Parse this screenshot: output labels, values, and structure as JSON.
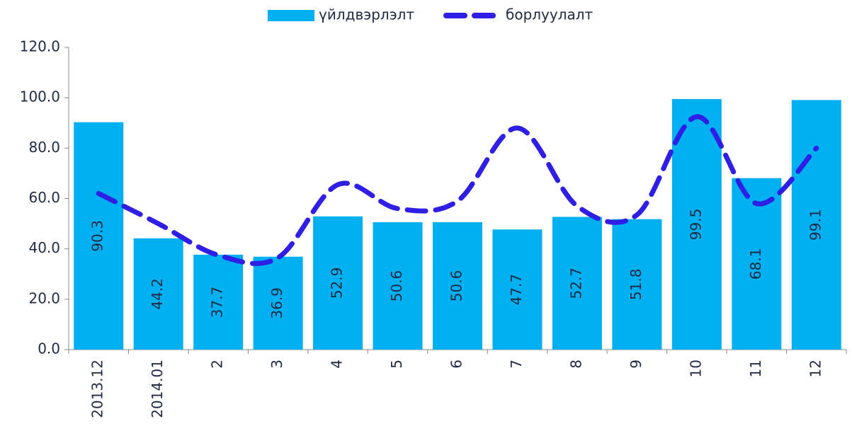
{
  "chart_data": {
    "type": "bar_line",
    "categories": [
      "2013.12",
      "2014.01",
      "2",
      "3",
      "4",
      "5",
      "6",
      "7",
      "8",
      "9",
      "10",
      "11",
      "12"
    ],
    "series": [
      {
        "name": "үйлдвэрлэлт",
        "type": "bar",
        "color": "#00b0f0",
        "values": [
          90.3,
          44.2,
          37.7,
          36.9,
          52.9,
          50.6,
          50.6,
          47.7,
          52.7,
          51.8,
          99.5,
          68.1,
          99.1
        ]
      },
      {
        "name": "борлуулалт",
        "type": "line",
        "color": "#2e1ee6",
        "values": [
          62,
          50,
          37.5,
          36.5,
          65.5,
          56,
          59,
          88,
          57,
          53.5,
          92.5,
          58,
          80
        ]
      }
    ],
    "ylim": [
      0,
      120
    ],
    "yticks": [
      {
        "value": 0,
        "label": "0.0"
      },
      {
        "value": 20,
        "label": "20.0"
      },
      {
        "value": 40,
        "label": "40.0"
      },
      {
        "value": 60,
        "label": "60.0"
      },
      {
        "value": 80,
        "label": "80.0"
      },
      {
        "value": 100,
        "label": "100.0"
      },
      {
        "value": 120,
        "label": "120.0"
      }
    ],
    "legend": "top"
  }
}
